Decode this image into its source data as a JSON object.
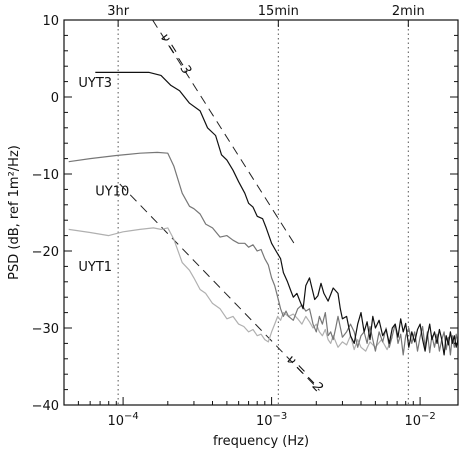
{
  "chart_data": {
    "type": "line",
    "xlabel": "frequency (Hz)",
    "ylabel": "PSD (dB, ref 1m²/Hz)",
    "xscale": "log",
    "xlim": [
      4e-05,
      0.018
    ],
    "ylim": [
      -40,
      10
    ],
    "grid": false,
    "y_ticks": [
      -40,
      -30,
      -20,
      -10,
      0,
      10
    ],
    "y_tick_labels": [
      "−40",
      "−30",
      "−20",
      "−10",
      "0",
      "10"
    ],
    "x_ticks": [
      0.0001,
      0.001,
      0.01
    ],
    "x_tick_labels": [
      "10⁻⁴",
      "10⁻³",
      "10⁻²"
    ],
    "top_axis": {
      "marks": [
        {
          "x": 9.26e-05,
          "label": "3hr"
        },
        {
          "x": 0.00111,
          "label": "15min"
        },
        {
          "x": 0.00833,
          "label": "2min"
        }
      ]
    },
    "reference_lines": [
      {
        "label": "ν = −3",
        "slope": -3,
        "points": [
          [
            0.000158,
            10
          ],
          [
            0.00147,
            -19.5
          ]
        ]
      },
      {
        "label": "ν = −2",
        "slope": -2,
        "points": [
          [
            9.5e-05,
            -11.3
          ],
          [
            0.0021,
            -38.1
          ]
        ]
      }
    ],
    "series": [
      {
        "name": "UYT3",
        "color": "#111111",
        "points": [
          [
            6.5e-05,
            3.2
          ],
          [
            0.0001,
            3.2
          ],
          [
            0.00015,
            3.2
          ],
          [
            0.00018,
            2.8
          ],
          [
            0.00021,
            1.5
          ],
          [
            0.00024,
            0.8
          ],
          [
            0.00028,
            -0.8
          ],
          [
            0.00033,
            -1.8
          ],
          [
            0.00037,
            -4
          ],
          [
            0.00042,
            -5
          ],
          [
            0.00046,
            -7.5
          ],
          [
            0.0005,
            -8.2
          ],
          [
            0.00055,
            -9.5
          ],
          [
            0.0006,
            -11
          ],
          [
            0.00066,
            -12.5
          ],
          [
            0.0007,
            -13.8
          ],
          [
            0.00075,
            -14.3
          ],
          [
            0.0008,
            -15.5
          ],
          [
            0.00087,
            -15.8
          ],
          [
            0.00092,
            -17
          ],
          [
            0.001,
            -19
          ],
          [
            0.00107,
            -20
          ],
          [
            0.00115,
            -21
          ],
          [
            0.0012,
            -22.8
          ],
          [
            0.00128,
            -24
          ],
          [
            0.00135,
            -25.2
          ],
          [
            0.0014,
            -26
          ],
          [
            0.00148,
            -25.5
          ],
          [
            0.00155,
            -26.5
          ],
          [
            0.00163,
            -27.5
          ],
          [
            0.0017,
            -24.5
          ],
          [
            0.0018,
            -23.5
          ],
          [
            0.00188,
            -25
          ],
          [
            0.00195,
            -26.3
          ],
          [
            0.00205,
            -25.8
          ],
          [
            0.00215,
            -24.2
          ],
          [
            0.00225,
            -25.5
          ],
          [
            0.0024,
            -26.5
          ],
          [
            0.0026,
            -24.8
          ],
          [
            0.0028,
            -25.5
          ],
          [
            0.0029,
            -27.5
          ],
          [
            0.003,
            -28.8
          ],
          [
            0.0032,
            -28.5
          ],
          [
            0.0034,
            -31
          ],
          [
            0.0036,
            -32
          ],
          [
            0.0038,
            -29.5
          ],
          [
            0.004,
            -28
          ],
          [
            0.0042,
            -30.5
          ],
          [
            0.0044,
            -29.2
          ],
          [
            0.0046,
            -31.5
          ],
          [
            0.0048,
            -28.5
          ],
          [
            0.005,
            -30
          ],
          [
            0.0053,
            -29
          ],
          [
            0.0056,
            -31
          ],
          [
            0.0059,
            -30.2
          ],
          [
            0.0062,
            -32
          ],
          [
            0.0065,
            -30
          ],
          [
            0.0068,
            -29.5
          ],
          [
            0.0071,
            -31.2
          ],
          [
            0.0074,
            -28.8
          ],
          [
            0.0077,
            -30.5
          ],
          [
            0.008,
            -29.4
          ],
          [
            0.0084,
            -32.5
          ],
          [
            0.0088,
            -30.5
          ],
          [
            0.0092,
            -31.8
          ],
          [
            0.0096,
            -30.2
          ],
          [
            0.01,
            -29.5
          ],
          [
            0.0104,
            -31.5
          ],
          [
            0.0108,
            -33
          ],
          [
            0.0112,
            -31
          ],
          [
            0.0116,
            -29.5
          ],
          [
            0.012,
            -31.5
          ],
          [
            0.0125,
            -30.5
          ],
          [
            0.013,
            -32
          ],
          [
            0.0135,
            -30.2
          ],
          [
            0.014,
            -31.5
          ],
          [
            0.0145,
            -33.5
          ],
          [
            0.015,
            -31
          ],
          [
            0.0155,
            -32.2
          ],
          [
            0.016,
            -30.5
          ],
          [
            0.0165,
            -32
          ],
          [
            0.017,
            -31
          ],
          [
            0.0175,
            -32.5
          ],
          [
            0.018,
            -31.5
          ]
        ]
      },
      {
        "name": "UY10",
        "color": "#777777",
        "points": [
          [
            4.3e-05,
            -8.4
          ],
          [
            6e-05,
            -8
          ],
          [
            9e-05,
            -7.6
          ],
          [
            0.00013,
            -7.3
          ],
          [
            0.00017,
            -7.2
          ],
          [
            0.0002,
            -7.3
          ],
          [
            0.00022,
            -9
          ],
          [
            0.00025,
            -12.5
          ],
          [
            0.00028,
            -14.2
          ],
          [
            0.0003,
            -14.5
          ],
          [
            0.00033,
            -15.2
          ],
          [
            0.00036,
            -16.5
          ],
          [
            0.0004,
            -17
          ],
          [
            0.00045,
            -18.2
          ],
          [
            0.0005,
            -18
          ],
          [
            0.00055,
            -18.6
          ],
          [
            0.0006,
            -19
          ],
          [
            0.00066,
            -19
          ],
          [
            0.0007,
            -19.5
          ],
          [
            0.00075,
            -19.2
          ],
          [
            0.0008,
            -20
          ],
          [
            0.00085,
            -19.8
          ],
          [
            0.0009,
            -21
          ],
          [
            0.00095,
            -21.8
          ],
          [
            0.001,
            -23.5
          ],
          [
            0.00105,
            -24.5
          ],
          [
            0.0011,
            -26
          ],
          [
            0.00115,
            -27.5
          ],
          [
            0.0012,
            -28.5
          ],
          [
            0.00125,
            -27.8
          ],
          [
            0.0013,
            -28.5
          ],
          [
            0.0014,
            -29
          ],
          [
            0.0015,
            -27.5
          ],
          [
            0.0016,
            -27
          ],
          [
            0.0017,
            -27.8
          ],
          [
            0.0018,
            -27.5
          ],
          [
            0.00185,
            -28.5
          ],
          [
            0.0019,
            -29.5
          ],
          [
            0.002,
            -30.5
          ],
          [
            0.0021,
            -28.5
          ],
          [
            0.0022,
            -29.5
          ],
          [
            0.0023,
            -28
          ],
          [
            0.0024,
            -31
          ],
          [
            0.0025,
            -30.5
          ],
          [
            0.0026,
            -31.5
          ],
          [
            0.0027,
            -30
          ],
          [
            0.0028,
            -28.5
          ],
          [
            0.003,
            -31.2
          ],
          [
            0.0032,
            -30.5
          ],
          [
            0.0034,
            -29.5
          ],
          [
            0.0036,
            -30.5
          ],
          [
            0.0038,
            -32.5
          ],
          [
            0.004,
            -31
          ],
          [
            0.0042,
            -30.5
          ],
          [
            0.0044,
            -32
          ],
          [
            0.0046,
            -29.8
          ],
          [
            0.0048,
            -31.5
          ],
          [
            0.005,
            -33
          ],
          [
            0.0053,
            -30.5
          ],
          [
            0.0056,
            -31.8
          ],
          [
            0.0059,
            -30
          ],
          [
            0.0062,
            -32.5
          ],
          [
            0.0065,
            -31
          ],
          [
            0.0068,
            -29.5
          ],
          [
            0.0071,
            -32
          ],
          [
            0.0074,
            -30.8
          ],
          [
            0.0077,
            -33.5
          ],
          [
            0.008,
            -31
          ],
          [
            0.0084,
            -30
          ],
          [
            0.0088,
            -32
          ],
          [
            0.0092,
            -30.5
          ],
          [
            0.0096,
            -33
          ],
          [
            0.01,
            -31.2
          ],
          [
            0.0104,
            -29.8
          ],
          [
            0.0108,
            -32.5
          ],
          [
            0.0112,
            -30.5
          ],
          [
            0.0116,
            -33.2
          ],
          [
            0.012,
            -31
          ],
          [
            0.0125,
            -32.5
          ],
          [
            0.013,
            -30.8
          ],
          [
            0.0135,
            -33
          ],
          [
            0.014,
            -31.5
          ],
          [
            0.0145,
            -30.5
          ],
          [
            0.015,
            -32.8
          ],
          [
            0.0155,
            -31.2
          ],
          [
            0.016,
            -33.5
          ],
          [
            0.0165,
            -31
          ],
          [
            0.017,
            -32.5
          ],
          [
            0.0175,
            -30.8
          ],
          [
            0.018,
            -32
          ]
        ]
      },
      {
        "name": "UYT1",
        "color": "#b0b0b0",
        "points": [
          [
            4.3e-05,
            -17.2
          ],
          [
            6e-05,
            -17.6
          ],
          [
            8e-05,
            -18
          ],
          [
            0.0001,
            -17.5
          ],
          [
            0.00013,
            -17.2
          ],
          [
            0.00016,
            -17
          ],
          [
            0.00018,
            -17.2
          ],
          [
            0.0002,
            -17
          ],
          [
            0.00022,
            -18.5
          ],
          [
            0.00025,
            -21.5
          ],
          [
            0.00028,
            -22.5
          ],
          [
            0.0003,
            -23.5
          ],
          [
            0.00033,
            -25
          ],
          [
            0.00036,
            -25.5
          ],
          [
            0.0004,
            -26.8
          ],
          [
            0.00045,
            -27.5
          ],
          [
            0.0005,
            -28.8
          ],
          [
            0.00055,
            -28.5
          ],
          [
            0.0006,
            -29.5
          ],
          [
            0.00065,
            -29.8
          ],
          [
            0.0007,
            -30.5
          ],
          [
            0.00075,
            -30.2
          ],
          [
            0.0008,
            -31
          ],
          [
            0.00085,
            -30.8
          ],
          [
            0.0009,
            -31.5
          ],
          [
            0.00095,
            -31.8
          ],
          [
            0.001,
            -30.5
          ],
          [
            0.00105,
            -29.5
          ],
          [
            0.0011,
            -28.5
          ],
          [
            0.00115,
            -29
          ],
          [
            0.0012,
            -28
          ],
          [
            0.0013,
            -28.5
          ],
          [
            0.0014,
            -28.2
          ],
          [
            0.0015,
            -28.8
          ],
          [
            0.0016,
            -29.5
          ],
          [
            0.0017,
            -28.5
          ],
          [
            0.0018,
            -29.2
          ],
          [
            0.0019,
            -30
          ],
          [
            0.002,
            -29.5
          ],
          [
            0.0021,
            -30.5
          ],
          [
            0.0022,
            -31
          ],
          [
            0.0023,
            -30.2
          ],
          [
            0.0024,
            -31.5
          ],
          [
            0.0025,
            -32
          ],
          [
            0.0026,
            -31
          ],
          [
            0.0028,
            -32.5
          ],
          [
            0.003,
            -31.8
          ],
          [
            0.0032,
            -32.2
          ],
          [
            0.0034,
            -31
          ],
          [
            0.0036,
            -32.8
          ],
          [
            0.0038,
            -31.5
          ],
          [
            0.004,
            -32.5
          ],
          [
            0.0043,
            -33
          ],
          [
            0.0046,
            -31.8
          ],
          [
            0.005,
            -32.5
          ],
          [
            0.0055,
            -31.5
          ],
          [
            0.006,
            -32.8
          ],
          [
            0.0065,
            -31.2
          ]
        ]
      }
    ]
  }
}
